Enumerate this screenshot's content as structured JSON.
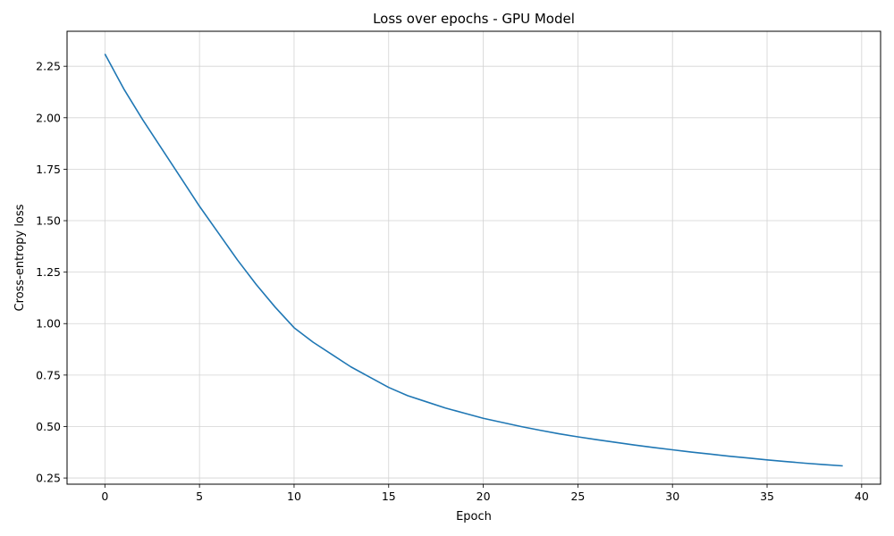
{
  "chart_data": {
    "type": "line",
    "title": "Loss over epochs - GPU Model",
    "xlabel": "Epoch",
    "ylabel": "Cross-entropy loss",
    "xlim": [
      -2,
      41
    ],
    "ylim": [
      0.22,
      2.42
    ],
    "xticks": [
      0,
      5,
      10,
      15,
      20,
      25,
      30,
      35,
      40
    ],
    "yticks": [
      0.25,
      0.5,
      0.75,
      1.0,
      1.25,
      1.5,
      1.75,
      2.0,
      2.25
    ],
    "grid": true,
    "series": [
      {
        "color": "#1f77b4",
        "x": [
          0,
          1,
          2,
          3,
          4,
          5,
          6,
          7,
          8,
          9,
          10,
          11,
          12,
          13,
          14,
          15,
          16,
          17,
          18,
          19,
          20,
          21,
          22,
          23,
          24,
          25,
          26,
          27,
          28,
          29,
          30,
          31,
          32,
          33,
          34,
          35,
          36,
          37,
          38,
          39
        ],
        "y": [
          2.31,
          2.14,
          1.99,
          1.85,
          1.71,
          1.57,
          1.44,
          1.31,
          1.19,
          1.08,
          0.98,
          0.91,
          0.85,
          0.79,
          0.74,
          0.69,
          0.65,
          0.62,
          0.59,
          0.565,
          0.54,
          0.52,
          0.5,
          0.482,
          0.465,
          0.45,
          0.436,
          0.423,
          0.41,
          0.398,
          0.387,
          0.376,
          0.366,
          0.356,
          0.347,
          0.338,
          0.33,
          0.322,
          0.315,
          0.309
        ]
      }
    ]
  }
}
